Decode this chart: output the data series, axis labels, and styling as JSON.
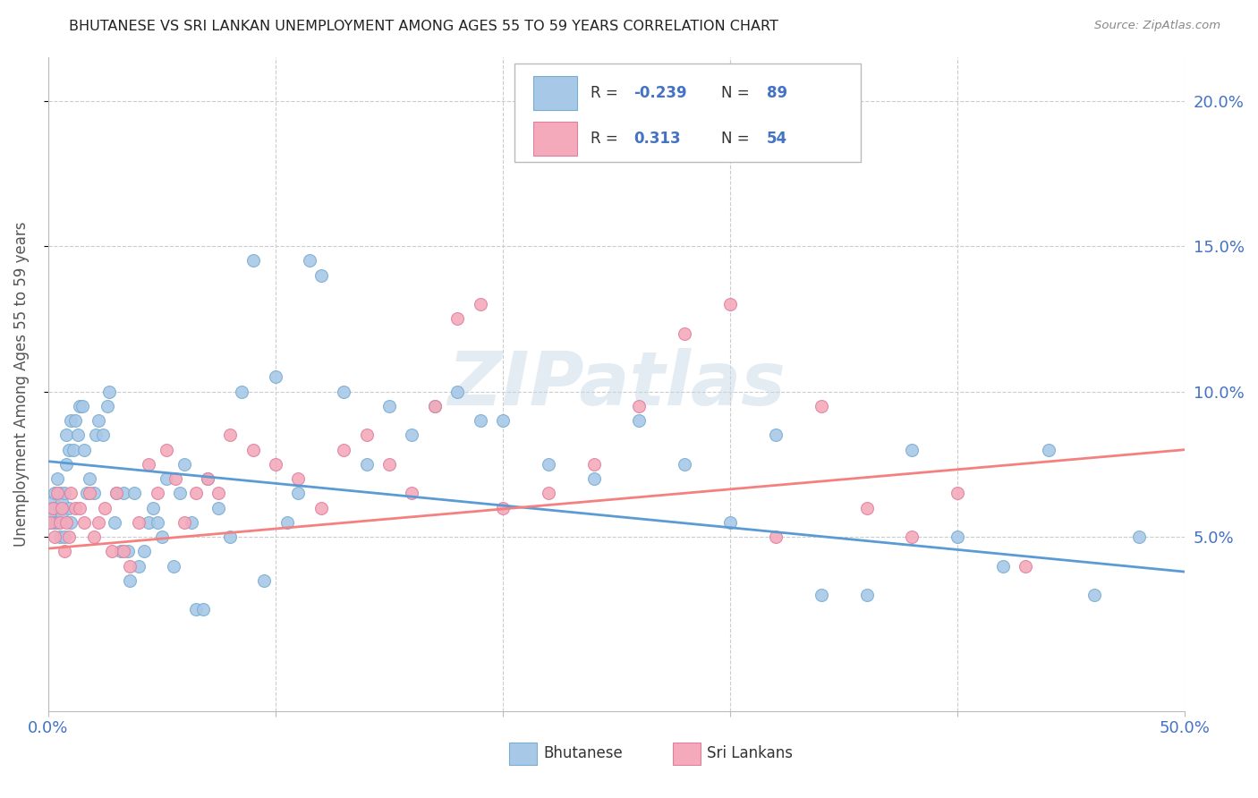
{
  "title": "BHUTANESE VS SRI LANKAN UNEMPLOYMENT AMONG AGES 55 TO 59 YEARS CORRELATION CHART",
  "source": "Source: ZipAtlas.com",
  "ylabel": "Unemployment Among Ages 55 to 59 years",
  "yticks_labels": [
    "5.0%",
    "10.0%",
    "15.0%",
    "20.0%"
  ],
  "ytick_vals": [
    0.05,
    0.1,
    0.15,
    0.2
  ],
  "xlim": [
    0.0,
    0.5
  ],
  "ylim": [
    -0.01,
    0.215
  ],
  "blue_R": "-0.239",
  "blue_N": "89",
  "pink_R": "0.313",
  "pink_N": "54",
  "blue_line_x": [
    0.0,
    0.5
  ],
  "blue_line_y": [
    0.076,
    0.038
  ],
  "pink_line_x": [
    0.0,
    0.5
  ],
  "pink_line_y": [
    0.046,
    0.08
  ],
  "watermark": "ZIPatlas",
  "blue_color": "#a8c8e8",
  "pink_color": "#f4aabb",
  "blue_line_color": "#5b9bd5",
  "pink_line_color": "#f48080",
  "grid_color": "#cccccc",
  "title_color": "#222222",
  "right_axis_color": "#4472c4",
  "background_color": "#ffffff",
  "bhutanese_x": [
    0.001,
    0.001,
    0.002,
    0.002,
    0.003,
    0.003,
    0.003,
    0.004,
    0.004,
    0.005,
    0.005,
    0.005,
    0.006,
    0.006,
    0.007,
    0.007,
    0.008,
    0.008,
    0.009,
    0.009,
    0.01,
    0.01,
    0.011,
    0.012,
    0.013,
    0.014,
    0.015,
    0.016,
    0.017,
    0.018,
    0.02,
    0.021,
    0.022,
    0.024,
    0.026,
    0.027,
    0.029,
    0.03,
    0.032,
    0.033,
    0.035,
    0.036,
    0.038,
    0.04,
    0.042,
    0.044,
    0.046,
    0.048,
    0.05,
    0.052,
    0.055,
    0.058,
    0.06,
    0.063,
    0.065,
    0.068,
    0.07,
    0.075,
    0.08,
    0.085,
    0.09,
    0.095,
    0.1,
    0.105,
    0.11,
    0.115,
    0.12,
    0.13,
    0.14,
    0.15,
    0.16,
    0.17,
    0.18,
    0.19,
    0.2,
    0.22,
    0.24,
    0.26,
    0.28,
    0.3,
    0.32,
    0.34,
    0.36,
    0.38,
    0.4,
    0.42,
    0.44,
    0.46,
    0.48
  ],
  "bhutanese_y": [
    0.06,
    0.055,
    0.062,
    0.058,
    0.065,
    0.055,
    0.06,
    0.07,
    0.055,
    0.06,
    0.05,
    0.065,
    0.058,
    0.062,
    0.065,
    0.05,
    0.085,
    0.075,
    0.06,
    0.08,
    0.055,
    0.09,
    0.08,
    0.09,
    0.085,
    0.095,
    0.095,
    0.08,
    0.065,
    0.07,
    0.065,
    0.085,
    0.09,
    0.085,
    0.095,
    0.1,
    0.055,
    0.065,
    0.045,
    0.065,
    0.045,
    0.035,
    0.065,
    0.04,
    0.045,
    0.055,
    0.06,
    0.055,
    0.05,
    0.07,
    0.04,
    0.065,
    0.075,
    0.055,
    0.025,
    0.025,
    0.07,
    0.06,
    0.05,
    0.1,
    0.145,
    0.035,
    0.105,
    0.055,
    0.065,
    0.145,
    0.14,
    0.1,
    0.075,
    0.095,
    0.085,
    0.095,
    0.1,
    0.09,
    0.09,
    0.075,
    0.07,
    0.09,
    0.075,
    0.055,
    0.085,
    0.03,
    0.03,
    0.08,
    0.05,
    0.04,
    0.08,
    0.03,
    0.05
  ],
  "srilankans_x": [
    0.001,
    0.002,
    0.003,
    0.004,
    0.005,
    0.006,
    0.007,
    0.008,
    0.009,
    0.01,
    0.012,
    0.014,
    0.016,
    0.018,
    0.02,
    0.022,
    0.025,
    0.028,
    0.03,
    0.033,
    0.036,
    0.04,
    0.044,
    0.048,
    0.052,
    0.056,
    0.06,
    0.065,
    0.07,
    0.075,
    0.08,
    0.09,
    0.1,
    0.11,
    0.12,
    0.13,
    0.14,
    0.15,
    0.16,
    0.17,
    0.18,
    0.19,
    0.2,
    0.22,
    0.24,
    0.26,
    0.28,
    0.3,
    0.32,
    0.34,
    0.36,
    0.38,
    0.4,
    0.43
  ],
  "srilankans_y": [
    0.055,
    0.06,
    0.05,
    0.065,
    0.055,
    0.06,
    0.045,
    0.055,
    0.05,
    0.065,
    0.06,
    0.06,
    0.055,
    0.065,
    0.05,
    0.055,
    0.06,
    0.045,
    0.065,
    0.045,
    0.04,
    0.055,
    0.075,
    0.065,
    0.08,
    0.07,
    0.055,
    0.065,
    0.07,
    0.065,
    0.085,
    0.08,
    0.075,
    0.07,
    0.06,
    0.08,
    0.085,
    0.075,
    0.065,
    0.095,
    0.125,
    0.13,
    0.06,
    0.065,
    0.075,
    0.095,
    0.12,
    0.13,
    0.05,
    0.095,
    0.06,
    0.05,
    0.065,
    0.04
  ]
}
